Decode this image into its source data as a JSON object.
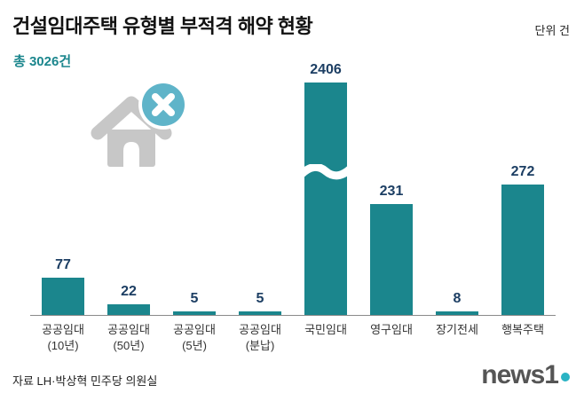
{
  "header": {
    "title": "건설임대주택 유형별 부적격 해약 현황",
    "unit_label": "단위 건",
    "total_label": "총 3026건"
  },
  "chart_data": {
    "type": "bar",
    "title": "건설임대주택 유형별 부적격 해약 현황",
    "unit": "건",
    "total": 3026,
    "categories": [
      "공공임대 (10년)",
      "공공임대 (50년)",
      "공공임대 (5년)",
      "공공임대 (분납)",
      "국민임대",
      "영구임대",
      "장기전세",
      "행복주택"
    ],
    "category_lines": [
      [
        "공공임대",
        "(10년)"
      ],
      [
        "공공임대",
        "(50년)"
      ],
      [
        "공공임대",
        "(5년)"
      ],
      [
        "공공임대",
        "(분납)"
      ],
      [
        "국민임대"
      ],
      [
        "영구임대"
      ],
      [
        "장기전세"
      ],
      [
        "행복주택"
      ]
    ],
    "values": [
      77,
      22,
      5,
      5,
      2406,
      231,
      8,
      272
    ],
    "broken_bar_index": 4,
    "axis_break": true,
    "grid": false,
    "legend": "none",
    "ylim": [
      0,
      2406
    ]
  },
  "icons": {
    "house_icon": "house-icon",
    "cancel_icon": "x-circle-icon"
  },
  "footer": {
    "source": "자료 LH·박상혁 민주당 의원실",
    "logo_text": "news1"
  },
  "colors": {
    "bar": "#1b868d",
    "accent_teal": "#1b868d",
    "value_label": "#1c3e63",
    "icon_gray": "#c7c7c7",
    "icon_circle": "#5fb4c9",
    "logo_dot": "#2ab3c4"
  }
}
